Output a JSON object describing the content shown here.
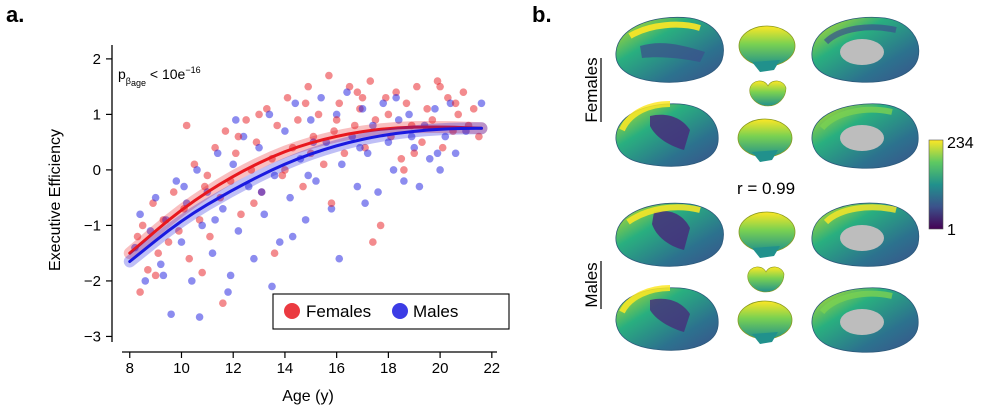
{
  "panels": {
    "a": "a.",
    "b": "b."
  },
  "chart_data": {
    "type": "scatter",
    "title": "",
    "xlabel": "Age (y)",
    "ylabel": "Executive Efficiency",
    "xlim": [
      7.7,
      22.2
    ],
    "ylim": [
      -3.1,
      2.25
    ],
    "xticks": [
      "8",
      "10",
      "12",
      "14",
      "16",
      "18",
      "20",
      "22"
    ],
    "yticks": [
      "2",
      "1",
      "0",
      "−1",
      "−2",
      "−3"
    ],
    "annotation": {
      "p": "p",
      "sub_beta": "β",
      "sub_age": "age",
      "rest": " < 10e",
      "exp": "−16"
    },
    "legend": {
      "position": "bottom-right",
      "entries": [
        "Females",
        "Males"
      ]
    },
    "series": [
      {
        "name": "Females",
        "color": "#e8181e",
        "fit": {
          "x": [
            8,
            10,
            12,
            14,
            16,
            18,
            20,
            21.6
          ],
          "y": [
            -1.5,
            -0.7,
            -0.1,
            0.35,
            0.62,
            0.76,
            0.78,
            0.75
          ]
        },
        "points": [
          [
            8.3,
            -1.2
          ],
          [
            8.5,
            -1.0
          ],
          [
            8.7,
            -1.8
          ],
          [
            8.9,
            -0.6
          ],
          [
            9.1,
            -1.5
          ],
          [
            9.3,
            -0.9
          ],
          [
            9.5,
            -1.3
          ],
          [
            9.7,
            -0.4
          ],
          [
            9.9,
            -1.1
          ],
          [
            10.1,
            -0.7
          ],
          [
            10.3,
            -1.6
          ],
          [
            10.5,
            0.1
          ],
          [
            10.7,
            -0.9
          ],
          [
            10.9,
            -0.3
          ],
          [
            11.1,
            -1.2
          ],
          [
            11.3,
            0.4
          ],
          [
            11.5,
            -0.5
          ],
          [
            11.7,
            0.7
          ],
          [
            11.9,
            -0.2
          ],
          [
            12.1,
            0.3
          ],
          [
            12.3,
            -0.8
          ],
          [
            12.5,
            0.9
          ],
          [
            12.7,
            0.0
          ],
          [
            12.9,
            0.5
          ],
          [
            13.1,
            -0.4
          ],
          [
            13.3,
            1.1
          ],
          [
            13.5,
            0.2
          ],
          [
            13.7,
            0.8
          ],
          [
            13.9,
            -0.1
          ],
          [
            14.1,
            1.3
          ],
          [
            14.3,
            0.4
          ],
          [
            14.5,
            0.9
          ],
          [
            14.7,
            -0.3
          ],
          [
            14.9,
            1.5
          ],
          [
            15.1,
            0.6
          ],
          [
            15.3,
            1.0
          ],
          [
            15.5,
            0.1
          ],
          [
            15.7,
            1.7
          ],
          [
            15.9,
            0.7
          ],
          [
            16.1,
            1.2
          ],
          [
            16.3,
            0.3
          ],
          [
            16.5,
            1.5
          ],
          [
            16.7,
            0.8
          ],
          [
            16.9,
            1.1
          ],
          [
            17.1,
            0.4
          ],
          [
            17.3,
            1.6
          ],
          [
            17.5,
            0.9
          ],
          [
            17.7,
            -1.0
          ],
          [
            17.9,
            1.3
          ],
          [
            18.1,
            0.6
          ],
          [
            18.3,
            1.4
          ],
          [
            18.5,
            0.2
          ],
          [
            18.7,
            1.2
          ],
          [
            18.9,
            0.8
          ],
          [
            19.1,
            1.5
          ],
          [
            19.3,
            0.5
          ],
          [
            19.5,
            1.1
          ],
          [
            19.7,
            0.9
          ],
          [
            19.9,
            1.6
          ],
          [
            20.1,
            0.4
          ],
          [
            20.3,
            1.3
          ],
          [
            20.5,
            0.7
          ],
          [
            20.7,
            1.0
          ],
          [
            20.9,
            1.4
          ],
          [
            21.1,
            0.8
          ],
          [
            21.3,
            1.1
          ],
          [
            21.5,
            0.6
          ],
          [
            8.4,
            -2.2
          ],
          [
            9.0,
            -1.9
          ],
          [
            10.8,
            -1.85
          ],
          [
            11.6,
            -2.4
          ],
          [
            13.6,
            -1.5
          ],
          [
            15.8,
            -0.6
          ],
          [
            17.4,
            -1.3
          ],
          [
            12.2,
            0.6
          ],
          [
            13.0,
            1.0
          ],
          [
            14.0,
            0.0
          ],
          [
            15.0,
            0.3
          ],
          [
            16.0,
            0.9
          ],
          [
            17.0,
            1.3
          ],
          [
            18.0,
            1.0
          ],
          [
            19.0,
            0.3
          ],
          [
            20.0,
            1.5
          ],
          [
            10.2,
            0.8
          ],
          [
            11.0,
            -0.1
          ],
          [
            12.8,
            -0.6
          ],
          [
            14.8,
            1.2
          ],
          [
            16.8,
            1.4
          ],
          [
            18.6,
            0.0
          ],
          [
            20.6,
            1.2
          ]
        ]
      },
      {
        "name": "Males",
        "color": "#1a1ae0",
        "fit": {
          "x": [
            8,
            10,
            12,
            14,
            16,
            18,
            20,
            21.6
          ],
          "y": [
            -1.65,
            -0.9,
            -0.35,
            0.12,
            0.45,
            0.65,
            0.74,
            0.75
          ]
        },
        "points": [
          [
            8.2,
            -1.4
          ],
          [
            8.4,
            -0.8
          ],
          [
            8.6,
            -2.0
          ],
          [
            8.8,
            -1.1
          ],
          [
            9.0,
            -0.5
          ],
          [
            9.2,
            -1.7
          ],
          [
            9.4,
            -0.9
          ],
          [
            9.6,
            -2.6
          ],
          [
            9.8,
            -0.2
          ],
          [
            10.0,
            -1.3
          ],
          [
            10.2,
            -0.6
          ],
          [
            10.4,
            -2.0
          ],
          [
            10.6,
            0.0
          ],
          [
            10.8,
            -1.0
          ],
          [
            11.0,
            -0.4
          ],
          [
            11.2,
            -1.5
          ],
          [
            11.4,
            0.3
          ],
          [
            11.6,
            -0.7
          ],
          [
            11.8,
            -2.2
          ],
          [
            12.0,
            0.1
          ],
          [
            12.2,
            -1.1
          ],
          [
            12.4,
            0.6
          ],
          [
            12.6,
            -0.3
          ],
          [
            12.8,
            -1.6
          ],
          [
            13.0,
            0.4
          ],
          [
            13.2,
            -0.8
          ],
          [
            13.4,
            1.0
          ],
          [
            13.6,
            -0.1
          ],
          [
            13.8,
            -1.3
          ],
          [
            14.0,
            0.7
          ],
          [
            14.2,
            -0.5
          ],
          [
            14.4,
            1.2
          ],
          [
            14.6,
            0.2
          ],
          [
            14.8,
            -0.9
          ],
          [
            15.0,
            0.9
          ],
          [
            15.2,
            -0.2
          ],
          [
            15.4,
            1.3
          ],
          [
            15.6,
            0.5
          ],
          [
            15.8,
            -0.7
          ],
          [
            16.0,
            1.0
          ],
          [
            16.2,
            0.1
          ],
          [
            16.4,
            1.4
          ],
          [
            16.6,
            0.6
          ],
          [
            16.8,
            -0.3
          ],
          [
            17.0,
            1.1
          ],
          [
            17.2,
            0.3
          ],
          [
            17.4,
            0.8
          ],
          [
            17.6,
            -0.4
          ],
          [
            17.8,
            1.2
          ],
          [
            18.0,
            0.5
          ],
          [
            18.2,
            0.0
          ],
          [
            18.4,
            0.9
          ],
          [
            18.6,
            -0.2
          ],
          [
            18.8,
            1.0
          ],
          [
            19.0,
            0.4
          ],
          [
            19.2,
            -0.3
          ],
          [
            19.4,
            0.8
          ],
          [
            19.6,
            0.2
          ],
          [
            19.8,
            1.1
          ],
          [
            20.0,
            0.0
          ],
          [
            20.2,
            0.6
          ],
          [
            20.4,
            1.2
          ],
          [
            20.6,
            0.3
          ],
          [
            21.0,
            0.7
          ],
          [
            21.6,
            1.2
          ],
          [
            10.7,
            -2.65
          ],
          [
            13.5,
            -2.1
          ],
          [
            16.1,
            -1.6
          ],
          [
            11.9,
            -1.9
          ],
          [
            14.3,
            -1.2
          ],
          [
            9.3,
            -1.9
          ],
          [
            12.1,
            0.9
          ],
          [
            13.1,
            -0.4
          ],
          [
            15.1,
            0.5
          ],
          [
            17.1,
            -0.6
          ],
          [
            18.9,
            0.6
          ],
          [
            19.9,
            0.3
          ],
          [
            11.3,
            -0.9
          ],
          [
            14.9,
            -0.1
          ],
          [
            16.9,
            0.4
          ],
          [
            18.3,
            1.3
          ],
          [
            10.1,
            -0.3
          ]
        ]
      }
    ]
  },
  "panel_b": {
    "group_labels": [
      "Females",
      "Males"
    ],
    "correlation_label": "r = 0.99",
    "colorbar": {
      "max_label": "234",
      "min_label": "1",
      "colors": [
        "#fde725",
        "#5ec962",
        "#21918c",
        "#3b528b",
        "#440154"
      ]
    }
  }
}
